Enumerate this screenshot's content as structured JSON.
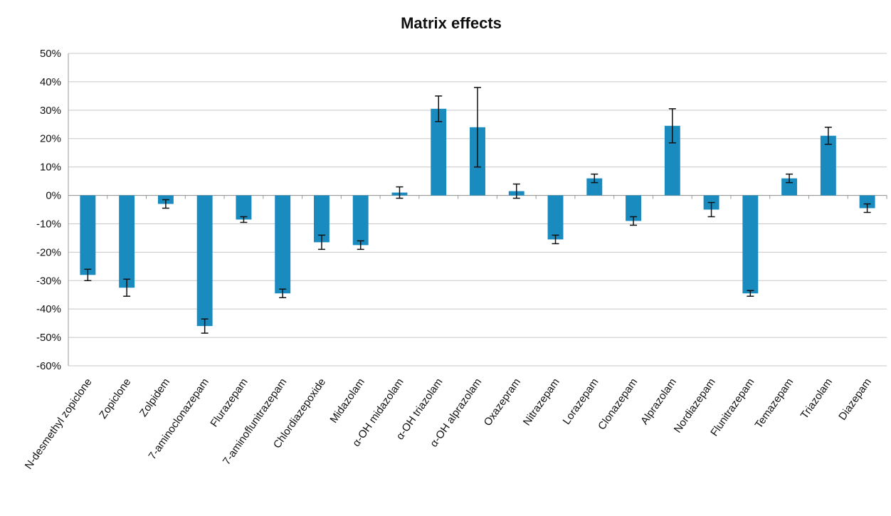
{
  "chart_data": {
    "type": "bar",
    "title": "Matrix effects",
    "xlabel": "",
    "ylabel": "",
    "ylim": [
      -60,
      50
    ],
    "y_ticks": [
      50,
      40,
      30,
      20,
      10,
      0,
      -10,
      -20,
      -30,
      -40,
      -50,
      -60
    ],
    "y_tick_labels": [
      "50%",
      "40%",
      "30%",
      "20%",
      "10%",
      "0%",
      "-10%",
      "-20%",
      "-30%",
      "-40%",
      "-50%",
      "-60%"
    ],
    "unit": "%",
    "grid": true,
    "legend": "none",
    "bar_color": "#1a8bbf",
    "categories": [
      "N-desmethyl zopiclone",
      "Zopiclone",
      "Zolpidem",
      "7-aminoclonazepam",
      "Flurazepam",
      "7-aminoflunitrazepam",
      "Chlordiazepoxide",
      "Midazolam",
      "α-OH midazolam",
      "α-OH triazolam",
      "α-OH alprazolam",
      "Oxazepram",
      "Nitrazepam",
      "Lorazepam",
      "Clonazepam",
      "Alprazolam",
      "Nordiazepam",
      "Flunitrazepam",
      "Temazepam",
      "Triazolam",
      "Diazepam"
    ],
    "values": [
      -28,
      -32.5,
      -3,
      -46,
      -8.5,
      -34.5,
      -16.5,
      -17.5,
      1,
      30.5,
      24,
      1.5,
      -15.5,
      6,
      -9,
      24.5,
      -5,
      -34.5,
      6,
      21,
      -4.5
    ],
    "errors": [
      2,
      3,
      1.5,
      2.5,
      1,
      1.5,
      2.5,
      1.5,
      2,
      4.5,
      14,
      2.5,
      1.5,
      1.5,
      1.5,
      6,
      2.5,
      1,
      1.5,
      3,
      1.5
    ]
  }
}
